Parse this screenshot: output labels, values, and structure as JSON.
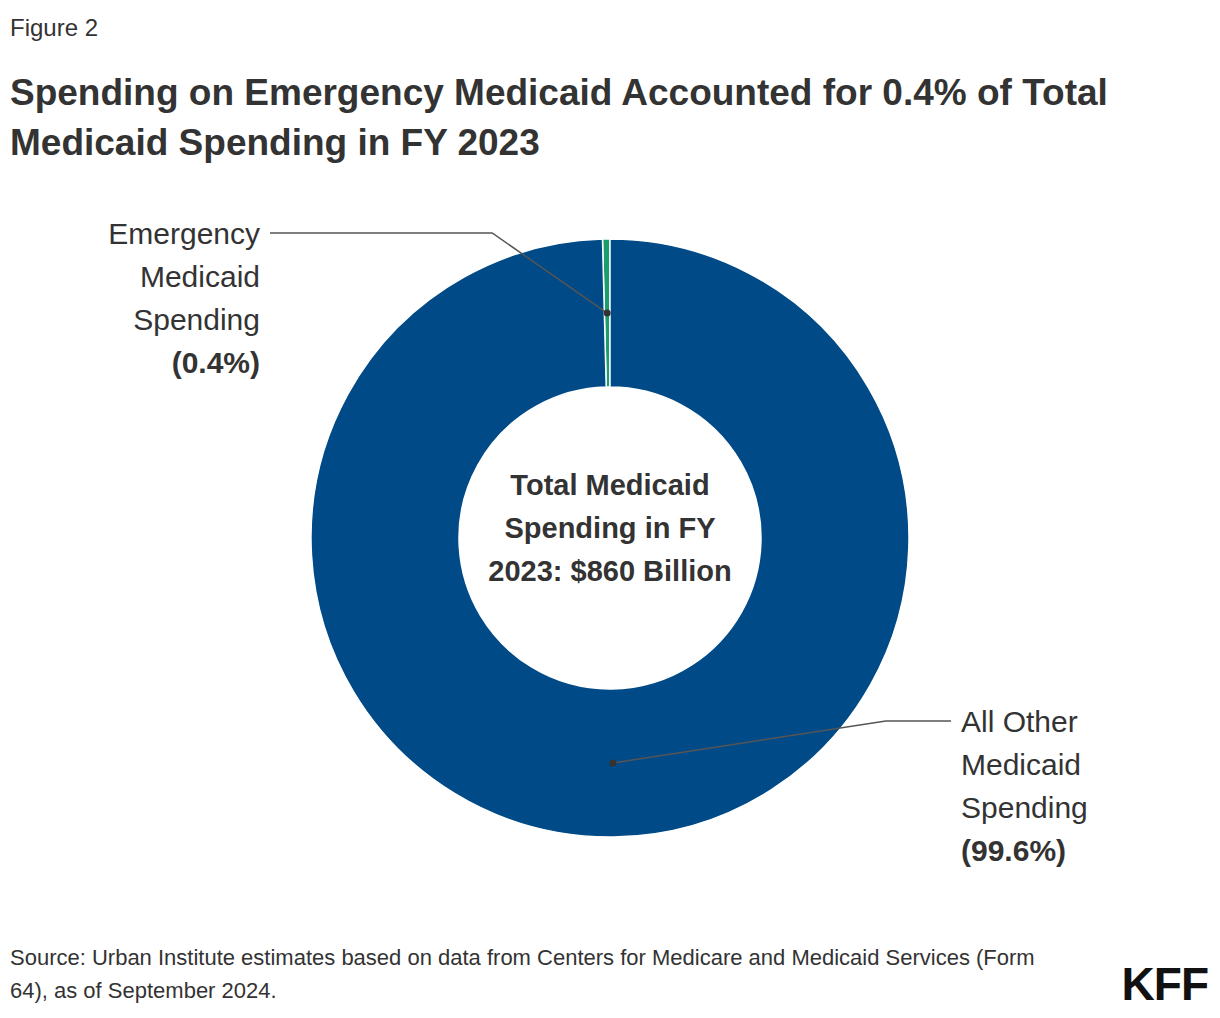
{
  "chart_data": {
    "type": "pie",
    "figure_label": "Figure 2",
    "title": "Spending on Emergency Medicaid Accounted for 0.4% of Total Medicaid Spending in FY 2023",
    "categories": [
      "Emergency Medicaid Spending",
      "All Other Medicaid Spending"
    ],
    "values": [
      0.4,
      99.6
    ],
    "value_labels": [
      "(0.4%)",
      "(99.6%)"
    ],
    "colors": [
      "#1a9e6e",
      "#004a87"
    ],
    "data_labels": true,
    "center_label": "Total Medicaid Spending in FY 2023: $860 Billion",
    "source": "Source: Urban Institute estimates based on data from Centers for Medicare and Medicaid Services (Form 64), as of September 2024.",
    "logo": "KFF"
  }
}
